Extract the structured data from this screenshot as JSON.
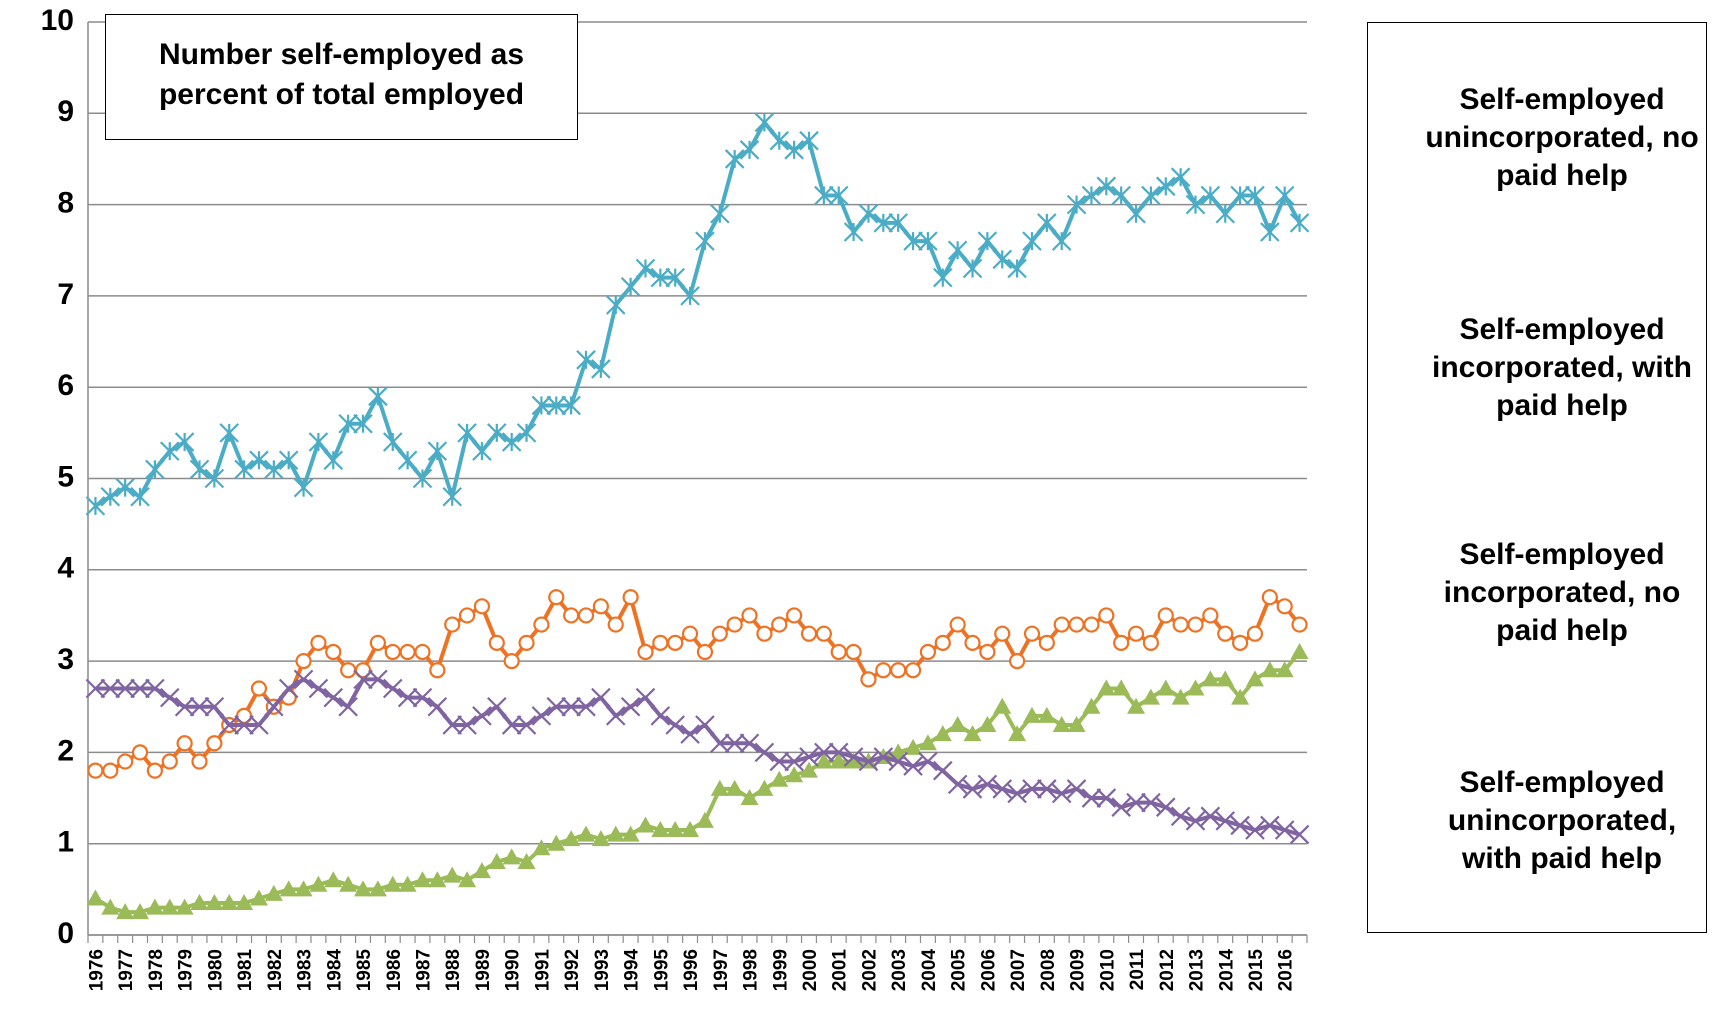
{
  "chart_data": {
    "type": "line",
    "title": "Number self-employed as percent of total employed",
    "categories": [
      "1976",
      null,
      "1977",
      null,
      "1978",
      null,
      "1979",
      null,
      "1980",
      null,
      "1981",
      null,
      "1982",
      null,
      "1983",
      null,
      "1984",
      null,
      "1985",
      null,
      "1986",
      null,
      "1987",
      null,
      "1988",
      null,
      "1989",
      null,
      "1990",
      null,
      "1991",
      null,
      "1992",
      null,
      "1993",
      null,
      "1994",
      null,
      "1995",
      null,
      "1996",
      null,
      "1997",
      null,
      "1998",
      null,
      "1999",
      null,
      "2000",
      null,
      "2001",
      null,
      "2002",
      null,
      "2003",
      null,
      "2004",
      null,
      "2005",
      null,
      "2006",
      null,
      "2007",
      null,
      "2008",
      null,
      "2009",
      null,
      "2010",
      null,
      "2011",
      null,
      "2012",
      null,
      "2013",
      null,
      "2014",
      null,
      "2015",
      null,
      "2016",
      null
    ],
    "series": [
      {
        "name": "Self-employed unincorporated, no paid help",
        "color": "#4bacc6",
        "marker": "asterisk",
        "values": [
          4.7,
          4.8,
          4.9,
          4.8,
          5.1,
          5.3,
          5.4,
          5.1,
          5.0,
          5.5,
          5.1,
          5.2,
          5.1,
          5.2,
          4.9,
          5.4,
          5.2,
          5.6,
          5.6,
          5.9,
          5.4,
          5.2,
          5.0,
          5.3,
          4.8,
          5.5,
          5.3,
          5.5,
          5.4,
          5.5,
          5.8,
          5.8,
          5.8,
          6.3,
          6.2,
          6.9,
          7.1,
          7.3,
          7.2,
          7.2,
          7.0,
          7.6,
          7.9,
          8.5,
          8.6,
          8.9,
          8.7,
          8.6,
          8.7,
          8.1,
          8.1,
          7.7,
          7.9,
          7.8,
          7.8,
          7.6,
          7.6,
          7.2,
          7.5,
          7.3,
          7.6,
          7.4,
          7.3,
          7.6,
          7.8,
          7.6,
          8.0,
          8.1,
          8.2,
          8.1,
          7.9,
          8.1,
          8.2,
          8.3,
          8.0,
          8.1,
          7.9,
          8.1,
          8.1,
          7.7,
          8.1,
          7.8
        ]
      },
      {
        "name": "Self-employed incorporated, with paid help",
        "color": "#ee7222",
        "marker": "circle",
        "values": [
          1.8,
          1.8,
          1.9,
          2.0,
          1.8,
          1.9,
          2.1,
          1.9,
          2.1,
          2.3,
          2.4,
          2.7,
          2.5,
          2.6,
          3.0,
          3.2,
          3.1,
          2.9,
          2.9,
          3.2,
          3.1,
          3.1,
          3.1,
          2.9,
          3.4,
          3.5,
          3.6,
          3.2,
          3.0,
          3.2,
          3.4,
          3.7,
          3.5,
          3.5,
          3.6,
          3.4,
          3.7,
          3.1,
          3.2,
          3.2,
          3.3,
          3.1,
          3.3,
          3.4,
          3.5,
          3.3,
          3.4,
          3.5,
          3.3,
          3.3,
          3.1,
          3.1,
          2.8,
          2.9,
          2.9,
          2.9,
          3.1,
          3.2,
          3.4,
          3.2,
          3.1,
          3.3,
          3.0,
          3.3,
          3.2,
          3.4,
          3.4,
          3.4,
          3.5,
          3.2,
          3.3,
          3.2,
          3.5,
          3.4,
          3.4,
          3.5,
          3.3,
          3.2,
          3.3,
          3.7,
          3.6,
          3.4
        ]
      },
      {
        "name": "Self-employed incorporated, no paid help",
        "color": "#9bbb59",
        "marker": "triangle",
        "values": [
          0.4,
          0.3,
          0.25,
          0.25,
          0.3,
          0.3,
          0.3,
          0.35,
          0.35,
          0.35,
          0.35,
          0.4,
          0.45,
          0.5,
          0.5,
          0.55,
          0.6,
          0.55,
          0.5,
          0.5,
          0.55,
          0.55,
          0.6,
          0.6,
          0.65,
          0.6,
          0.7,
          0.8,
          0.85,
          0.8,
          0.95,
          1.0,
          1.05,
          1.1,
          1.05,
          1.1,
          1.1,
          1.2,
          1.15,
          1.15,
          1.15,
          1.25,
          1.6,
          1.6,
          1.5,
          1.6,
          1.7,
          1.75,
          1.8,
          1.9,
          1.9,
          1.9,
          1.9,
          1.95,
          2.0,
          2.05,
          2.1,
          2.2,
          2.3,
          2.2,
          2.3,
          2.5,
          2.2,
          2.4,
          2.4,
          2.3,
          2.3,
          2.5,
          2.7,
          2.7,
          2.5,
          2.6,
          2.7,
          2.6,
          2.7,
          2.8,
          2.8,
          2.6,
          2.8,
          2.9,
          2.9,
          3.1
        ]
      },
      {
        "name": "Self-employed unincorporated, with paid help",
        "color": "#8064a2",
        "marker": "x",
        "values": [
          2.7,
          2.7,
          2.7,
          2.7,
          2.7,
          2.6,
          2.5,
          2.5,
          2.5,
          2.3,
          2.3,
          2.3,
          2.5,
          2.7,
          2.8,
          2.7,
          2.6,
          2.5,
          2.8,
          2.8,
          2.7,
          2.6,
          2.6,
          2.5,
          2.3,
          2.3,
          2.4,
          2.5,
          2.3,
          2.3,
          2.4,
          2.5,
          2.5,
          2.5,
          2.6,
          2.4,
          2.5,
          2.6,
          2.4,
          2.3,
          2.2,
          2.3,
          2.1,
          2.1,
          2.1,
          2.0,
          1.9,
          1.9,
          1.95,
          2.0,
          2.0,
          1.95,
          1.9,
          1.95,
          1.9,
          1.85,
          1.9,
          1.8,
          1.65,
          1.6,
          1.65,
          1.6,
          1.55,
          1.6,
          1.6,
          1.55,
          1.6,
          1.5,
          1.5,
          1.4,
          1.45,
          1.45,
          1.4,
          1.3,
          1.25,
          1.3,
          1.25,
          1.2,
          1.15,
          1.2,
          1.15,
          1.1
        ]
      }
    ],
    "ylim": [
      0,
      10
    ],
    "yticks": [
      0,
      1,
      2,
      3,
      4,
      5,
      6,
      7,
      8,
      9,
      10
    ],
    "grid": true
  }
}
